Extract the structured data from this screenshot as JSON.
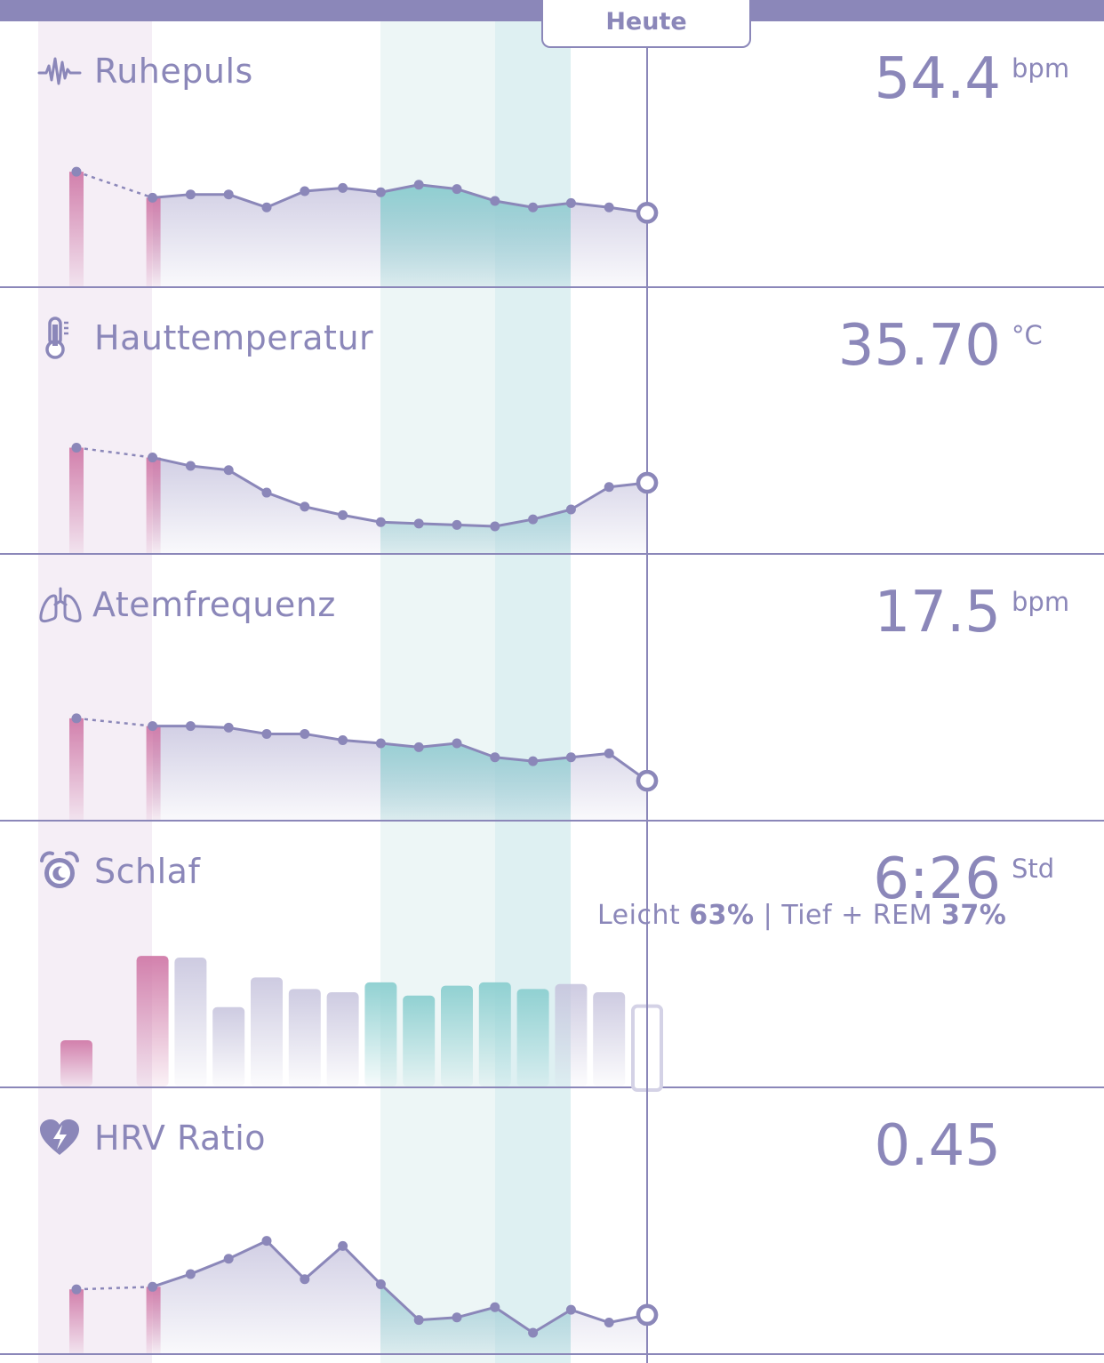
{
  "header": {
    "today_label": "Heute"
  },
  "chart_data": [
    {
      "type": "line",
      "id": "ruhepuls",
      "title": "Ruhepuls",
      "icon": "pulse-icon",
      "current_value": "54.4",
      "unit": "bpm",
      "x": [
        0,
        2,
        3,
        4,
        5,
        6,
        7,
        8,
        9,
        10,
        11,
        12,
        13,
        14,
        15
      ],
      "y": [
        56.3,
        55.1,
        55.25,
        55.25,
        54.65,
        55.4,
        55.55,
        55.35,
        55.7,
        55.5,
        54.95,
        54.65,
        54.85,
        54.65,
        54.4
      ],
      "ylim": [
        51.0,
        57.5
      ]
    },
    {
      "type": "line",
      "id": "hauttemperatur",
      "title": "Hauttemperatur",
      "icon": "thermometer-icon",
      "current_value": "35.70",
      "unit": "°C",
      "x": [
        0,
        2,
        3,
        4,
        5,
        6,
        7,
        8,
        9,
        10,
        11,
        12,
        13,
        14,
        15
      ],
      "y": [
        35.95,
        35.88,
        35.82,
        35.79,
        35.63,
        35.53,
        35.47,
        35.42,
        35.41,
        35.4,
        35.39,
        35.44,
        35.51,
        35.67,
        35.7
      ],
      "ylim": [
        35.2,
        36.2
      ]
    },
    {
      "type": "line",
      "id": "atemfrequenz",
      "title": "Atemfrequenz",
      "icon": "lungs-icon",
      "current_value": "17.5",
      "unit": "bpm",
      "x": [
        0,
        2,
        3,
        4,
        5,
        6,
        7,
        8,
        9,
        10,
        11,
        12,
        13,
        14,
        15
      ],
      "y": [
        18.3,
        18.2,
        18.2,
        18.18,
        18.1,
        18.1,
        18.02,
        17.98,
        17.93,
        17.98,
        17.8,
        17.75,
        17.8,
        17.85,
        17.5
      ],
      "ylim": [
        17.0,
        18.8
      ]
    },
    {
      "type": "bar",
      "id": "schlaf",
      "title": "Schlaf",
      "icon": "alarm-clock-icon",
      "current_value": "6:26",
      "unit": "Std",
      "sleep_split": {
        "light_label": "Leicht",
        "light_pct": "63%",
        "sep": "|",
        "deep_label": "Tief + REM",
        "deep_pct": "37%"
      },
      "x": [
        0,
        2,
        3,
        4,
        5,
        6,
        7,
        8,
        9,
        10,
        11,
        12,
        13,
        14,
        15
      ],
      "values": [
        5.4,
        7.95,
        7.9,
        6.4,
        7.3,
        6.95,
        6.85,
        7.15,
        6.75,
        7.05,
        7.15,
        6.95,
        7.1,
        6.85,
        6.43
      ],
      "ylim": [
        4.0,
        8.25
      ]
    },
    {
      "type": "line",
      "id": "hrv",
      "title": "HRV Ratio",
      "icon": "heart-bolt-icon",
      "current_value": "0.45",
      "unit": "",
      "x": [
        0,
        2,
        3,
        4,
        5,
        6,
        7,
        8,
        9,
        10,
        11,
        12,
        13,
        14,
        15
      ],
      "y": [
        0.55,
        0.56,
        0.61,
        0.67,
        0.74,
        0.59,
        0.72,
        0.57,
        0.43,
        0.44,
        0.48,
        0.38,
        0.47,
        0.42,
        0.45
      ],
      "ylim": [
        0.3,
        0.85
      ]
    }
  ],
  "colors": {
    "accent": "#8b87b9",
    "area_fill": "#d9d6e8",
    "past_band": "#f5eef6",
    "past_bar": "#d07aa8",
    "fertile_band": "#edf6f6",
    "peak_band": "#def0f2",
    "fertile_fill": "#8ccfd0",
    "divider": "#8b87b9"
  }
}
